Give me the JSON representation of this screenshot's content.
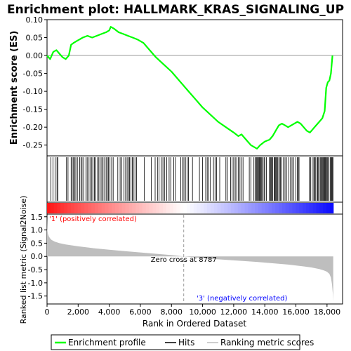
{
  "chart_data": {
    "type": "line",
    "title": "Enrichment plot: HALLMARK_KRAS_SIGNALING_UP",
    "colors": {
      "enrichment_line": "#00ff00",
      "hits": "#000000",
      "ranking_fill": "#bebebe",
      "positive_text": "#ff0000",
      "negative_text": "#0000ff",
      "zero_line": "#999999"
    },
    "es_panel": {
      "ylabel": "Enrichment score (ES)",
      "ylim": [
        -0.28,
        0.1
      ],
      "yticks": [
        0.1,
        0.05,
        0.0,
        -0.05,
        -0.1,
        -0.15,
        -0.2,
        -0.25
      ],
      "ytick_labels": [
        "0.10",
        "0.05",
        "0.00",
        "-0.05",
        "-0.10",
        "-0.15",
        "-0.20",
        "-0.25"
      ],
      "series": [
        {
          "name": "Enrichment profile",
          "x": [
            0,
            200,
            400,
            600,
            800,
            1000,
            1200,
            1400,
            1550,
            1700,
            1900,
            2100,
            2300,
            2600,
            2900,
            3200,
            3500,
            3800,
            4000,
            4100,
            4300,
            4600,
            4900,
            5200,
            5500,
            5800,
            6200,
            6600,
            7000,
            7500,
            8000,
            8500,
            9000,
            9500,
            10000,
            10500,
            11000,
            11500,
            12000,
            12300,
            12500,
            12800,
            13100,
            13500,
            13700,
            14000,
            14300,
            14500,
            14700,
            14900,
            15100,
            15300,
            15500,
            15700,
            15900,
            16100,
            16300,
            16500,
            16700,
            16900,
            17100,
            17300,
            17500,
            17700,
            17850,
            17950,
            18050,
            18150,
            18250,
            18300,
            18350
          ],
          "y": [
            0.0,
            -0.01,
            0.01,
            0.015,
            0.005,
            -0.005,
            -0.01,
            0.0,
            0.03,
            0.035,
            0.04,
            0.045,
            0.05,
            0.055,
            0.05,
            0.055,
            0.06,
            0.065,
            0.07,
            0.08,
            0.075,
            0.065,
            0.06,
            0.055,
            0.05,
            0.045,
            0.035,
            0.015,
            -0.005,
            -0.025,
            -0.045,
            -0.07,
            -0.095,
            -0.12,
            -0.145,
            -0.165,
            -0.185,
            -0.2,
            -0.215,
            -0.225,
            -0.22,
            -0.235,
            -0.25,
            -0.26,
            -0.25,
            -0.24,
            -0.235,
            -0.225,
            -0.21,
            -0.195,
            -0.19,
            -0.195,
            -0.2,
            -0.195,
            -0.19,
            -0.185,
            -0.19,
            -0.2,
            -0.21,
            -0.215,
            -0.205,
            -0.195,
            -0.185,
            -0.175,
            -0.155,
            -0.09,
            -0.075,
            -0.07,
            -0.05,
            -0.025,
            0.0
          ]
        }
      ]
    },
    "hits_panel": {
      "legend_label": "Hits",
      "hit_positions": [
        250,
        380,
        520,
        640,
        700,
        1250,
        1350,
        1550,
        1620,
        1700,
        1780,
        1850,
        1950,
        2100,
        2180,
        2250,
        2350,
        2500,
        2580,
        2700,
        2800,
        2880,
        2950,
        3050,
        3120,
        3250,
        3330,
        3420,
        3520,
        3600,
        3700,
        3800,
        3880,
        3950,
        4050,
        4150,
        4250,
        4550,
        4700,
        4800,
        4950,
        5050,
        5150,
        5250,
        5300,
        5400,
        5480,
        5550,
        5650,
        5750,
        6250,
        6700,
        6950,
        7100,
        7200,
        7350,
        7450,
        7550,
        7700,
        7850,
        7950,
        8150,
        8250,
        8600,
        8700,
        8800,
        8900,
        9000,
        9100,
        9350,
        9800,
        10000,
        10200,
        10300,
        10400,
        10500,
        10700,
        10800,
        10900,
        11100,
        11500,
        11600,
        11800,
        11900,
        12000,
        12100,
        12200,
        12300,
        12400,
        12500,
        12600,
        13000,
        13100,
        13300,
        13400,
        13450,
        13500,
        13550,
        13600,
        13650,
        13700,
        13750,
        13800,
        13850,
        13950,
        14000,
        14100,
        14300,
        14350,
        14400,
        14450,
        14500,
        14600,
        14650,
        14700,
        14750,
        14800,
        14850,
        14950,
        15000,
        15100,
        15200,
        15300,
        15400,
        15550,
        15650,
        15750,
        15850,
        16000,
        16100,
        16150,
        16200,
        16850,
        16950,
        17050,
        17150,
        17200,
        17250,
        17350,
        17400,
        17450,
        17550,
        17600,
        17650,
        17700,
        17750,
        17800,
        17850,
        17900,
        17950,
        18000,
        18050,
        18100,
        18200,
        18250,
        18300,
        18350,
        18380
      ]
    },
    "rank_panel": {
      "ylabel": "Ranked list metric (Signal2Noise)",
      "xlabel": "Rank in Ordered Dataset",
      "legend_label": "Ranking metric scores",
      "ylim": [
        -1.8,
        1.6
      ],
      "yticks": [
        1.5,
        1.0,
        0.5,
        0.0,
        -0.5,
        -1.0,
        -1.5
      ],
      "ytick_labels": [
        "1.5",
        "1.0",
        "0.5",
        "0.0",
        "-0.5",
        "-1.0",
        "-1.5"
      ],
      "xlim": [
        0,
        19000
      ],
      "xticks": [
        0,
        2000,
        4000,
        6000,
        8000,
        10000,
        12000,
        14000,
        16000,
        18000
      ],
      "xtick_labels": [
        "0",
        "2,000",
        "4,000",
        "6,000",
        "8,000",
        "10,000",
        "12,000",
        "14,000",
        "16,000",
        "18,000"
      ],
      "metric_x": [
        0,
        20,
        60,
        120,
        200,
        300,
        500,
        800,
        1200,
        2000,
        3000,
        4000,
        5000,
        6000,
        7000,
        8000,
        8787,
        9500,
        10500,
        11500,
        12500,
        13500,
        14500,
        15500,
        16500,
        17000,
        17500,
        17800,
        18000,
        18150,
        18250,
        18320,
        18380,
        18400
      ],
      "metric_y": [
        1.45,
        1.0,
        0.85,
        0.75,
        0.68,
        0.62,
        0.56,
        0.5,
        0.45,
        0.38,
        0.31,
        0.25,
        0.2,
        0.15,
        0.1,
        0.05,
        0.0,
        -0.04,
        -0.09,
        -0.13,
        -0.17,
        -0.21,
        -0.26,
        -0.31,
        -0.38,
        -0.42,
        -0.48,
        -0.53,
        -0.58,
        -0.66,
        -0.8,
        -1.05,
        -1.45,
        -1.7
      ],
      "zero_cross_label": "Zero cross at 8787",
      "zero_cross": 8787,
      "positive_label": "'1' (positively correlated)",
      "negative_label": "'3' (negatively correlated)"
    },
    "legend": {
      "entries": [
        "Enrichment profile",
        "Hits",
        "Ranking metric scores"
      ],
      "placement": "bottom"
    }
  }
}
